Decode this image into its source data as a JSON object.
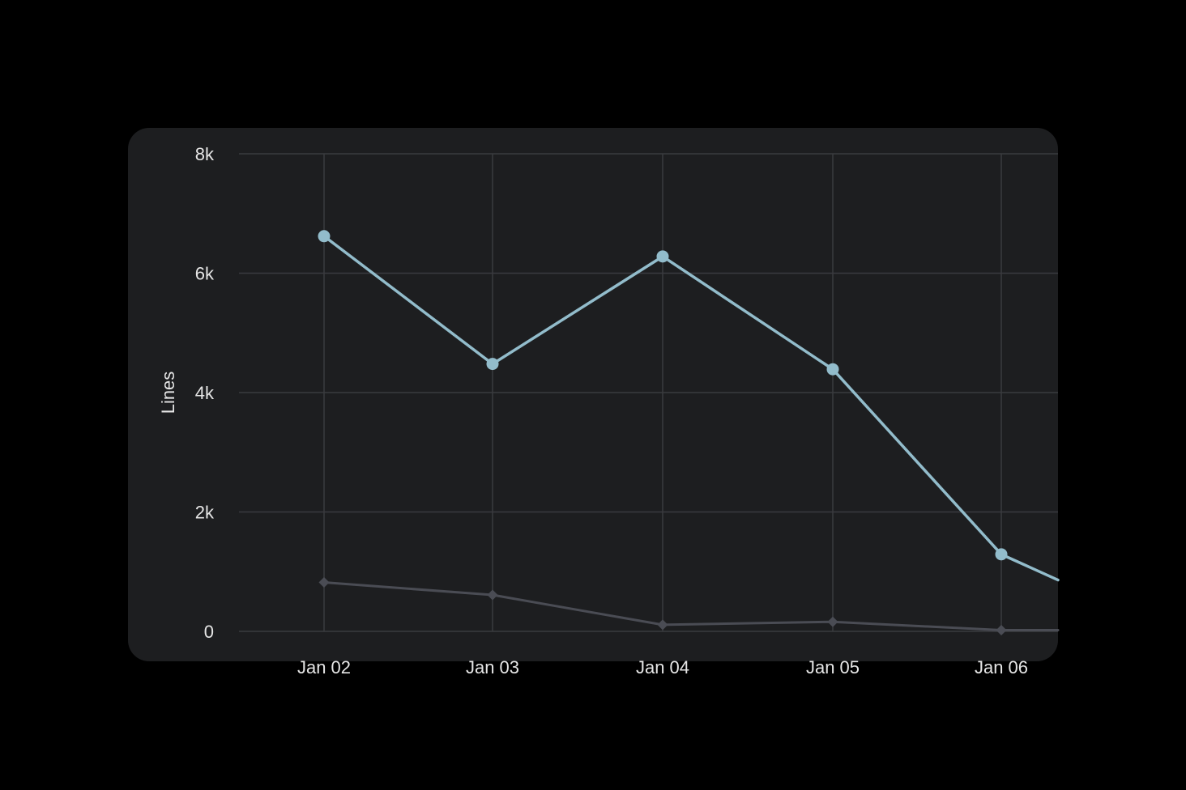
{
  "chart_data": {
    "type": "line",
    "title": "",
    "xlabel": "",
    "ylabel": "Lines",
    "ylim": [
      0,
      8000
    ],
    "y_ticks": [
      0,
      2000,
      4000,
      6000,
      8000
    ],
    "y_tick_labels": [
      "0",
      "2k",
      "4k",
      "6k",
      "8k"
    ],
    "x_tick_labels": [
      "Jan 02",
      "Jan 03",
      "Jan 04",
      "Jan 05",
      "Jan 06"
    ],
    "x_labels_clipped": true,
    "grid": true,
    "legend": "none",
    "series": [
      {
        "values": [
          6620,
          4480,
          6280,
          4390,
          1290
        ],
        "trailing_value": 860,
        "color": "#92bccb",
        "marker": "circle"
      },
      {
        "values": [
          820,
          610,
          110,
          160,
          20
        ],
        "trailing_value": 20,
        "color": "#4a4c54",
        "marker": "diamond"
      }
    ]
  },
  "colors": {
    "page_background": "#000000",
    "card_background": "#1d1e20",
    "grid": "#3a3b3f",
    "text": "#e6e6e6"
  }
}
